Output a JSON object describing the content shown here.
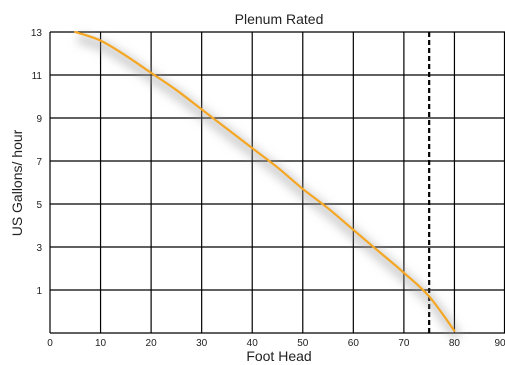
{
  "chart_data": {
    "type": "line",
    "title": "Plenum Rated",
    "xlabel": "Foot Head",
    "ylabel": "US Gallons/ hour",
    "xlim": [
      0,
      90
    ],
    "ylim": [
      -1,
      13
    ],
    "x_ticks": [
      0,
      10,
      20,
      30,
      40,
      50,
      60,
      70,
      80,
      90
    ],
    "x_tick_labels": [
      "0",
      "10",
      "20",
      "30",
      "40",
      "50",
      "60",
      "70",
      "80",
      "90"
    ],
    "y_ticks": [
      1,
      3,
      5,
      7,
      9,
      11,
      13
    ],
    "y_tick_labels": [
      "1",
      "3",
      "5",
      "7",
      "9",
      "11",
      "13"
    ],
    "grid": true,
    "series": [
      {
        "color": "#f5a623",
        "x": [
          5,
          10,
          15,
          20,
          25,
          30,
          35,
          40,
          45,
          50,
          55,
          60,
          65,
          70,
          75,
          80
        ],
        "y": [
          13.0,
          12.6,
          11.9,
          11.1,
          10.3,
          9.4,
          8.5,
          7.6,
          6.7,
          5.7,
          4.8,
          3.8,
          2.8,
          1.8,
          0.7,
          -0.9
        ]
      }
    ],
    "reference_lines": [
      {
        "axis": "x",
        "value": 75,
        "style": "dashed",
        "color": "#000000"
      }
    ]
  }
}
